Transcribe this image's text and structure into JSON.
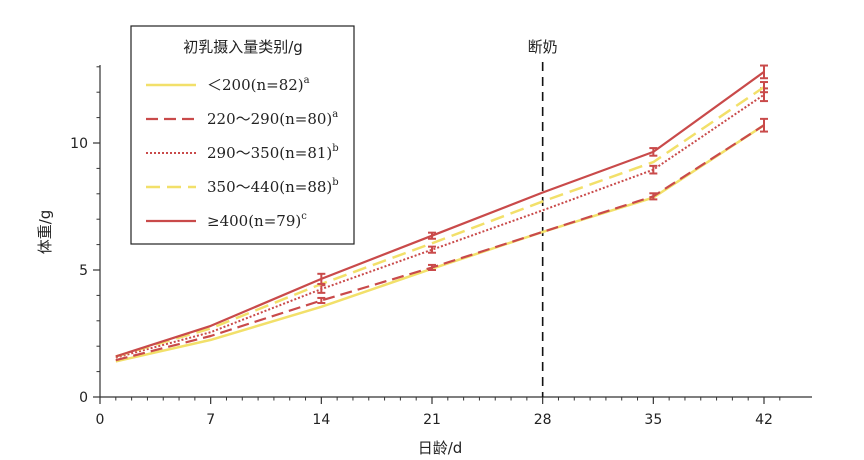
{
  "chart_data": {
    "type": "line",
    "xlabel": "日龄/d",
    "ylabel": "体重/g",
    "xlim": [
      0,
      44
    ],
    "ylim": [
      0,
      13
    ],
    "x_ticks": [
      0,
      7,
      14,
      21,
      28,
      35,
      42
    ],
    "y_ticks": [
      0,
      5,
      10
    ],
    "legend_title": "初乳摄入量类别/g",
    "legend_position": "top-left",
    "annotation": {
      "x": 28,
      "label": "断奶"
    },
    "x": [
      1,
      7,
      14,
      21,
      28,
      35,
      42
    ],
    "series": [
      {
        "name": "＜200(n=82)",
        "sup": "a",
        "color": "#f2e06a",
        "dash": "solid",
        "width": 2.5,
        "values": [
          1.4,
          2.25,
          3.55,
          5.05,
          6.5,
          7.85,
          10.7
        ],
        "errors": [
          0,
          0,
          0,
          0,
          0,
          0,
          0
        ]
      },
      {
        "name": "220～290(n=80)",
        "sup": "a",
        "color": "#c94a4a",
        "dash": "12 6",
        "width": 2.2,
        "values": [
          1.45,
          2.4,
          3.8,
          5.1,
          6.5,
          7.9,
          10.7
        ],
        "errors": [
          0,
          0,
          0.1,
          0.1,
          0,
          0.12,
          0.25
        ]
      },
      {
        "name": "290～350(n=81)",
        "sup": "b",
        "color": "#c94a4a",
        "dash": "2 2",
        "width": 2,
        "values": [
          1.55,
          2.55,
          4.25,
          5.8,
          7.35,
          8.95,
          11.9
        ],
        "errors": [
          0,
          0,
          0.15,
          0.12,
          0,
          0.15,
          0.25
        ]
      },
      {
        "name": "350～440(n=88)",
        "sup": "b",
        "color": "#f2e06a",
        "dash": "14 7",
        "width": 2.5,
        "values": [
          1.6,
          2.7,
          4.45,
          6.05,
          7.7,
          9.25,
          12.2
        ],
        "errors": [
          0,
          0,
          0,
          0,
          0,
          0,
          0.2
        ]
      },
      {
        "name": "≥400(n=79)",
        "sup": "c",
        "color": "#c94a4a",
        "dash": "solid",
        "width": 2.2,
        "values": [
          1.6,
          2.8,
          4.65,
          6.35,
          8.05,
          9.65,
          12.8
        ],
        "errors": [
          0,
          0,
          0.2,
          0.12,
          0,
          0.15,
          0.25
        ]
      }
    ]
  }
}
